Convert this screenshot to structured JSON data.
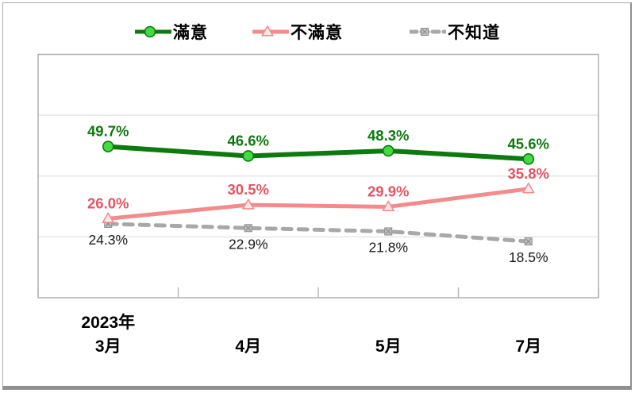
{
  "frame": {
    "background": "#ffffff",
    "border_color": "#ababab",
    "shadow_color": "#909090"
  },
  "chart_data": {
    "type": "line",
    "title": "",
    "categories": [
      "2023年3月",
      "2023年4月",
      "2023年5月",
      "2023年7月"
    ],
    "x_labels": [
      {
        "top": "2023年",
        "bottom": "3月"
      },
      {
        "top": "",
        "bottom": "4月"
      },
      {
        "top": "",
        "bottom": "5月"
      },
      {
        "top": "",
        "bottom": "7月"
      }
    ],
    "series": [
      {
        "name": "滿意",
        "values": [
          49.7,
          46.6,
          48.3,
          45.6
        ],
        "line_color": "#0c7a0e",
        "marker": "circle",
        "marker_fill": "#42db42",
        "label_color": "#0c7a0e",
        "label_bold": true,
        "dash": "solid",
        "line_width": 6,
        "label_position": "above"
      },
      {
        "name": "不滿意",
        "values": [
          26.0,
          30.5,
          29.9,
          35.8
        ],
        "line_color": "#f28c8c",
        "marker": "triangle",
        "marker_fill": "#fbe9ea",
        "label_color": "#e25563",
        "label_bold": true,
        "dash": "solid",
        "line_width": 5,
        "label_position": "above"
      },
      {
        "name": "不知道",
        "values": [
          24.3,
          22.9,
          21.8,
          18.5
        ],
        "line_color": "#a8a8a8",
        "marker": "square-x",
        "marker_fill": "#c4c4c4",
        "marker_stroke": "#8a8a8a",
        "label_color": "#1a1a1a",
        "label_bold": false,
        "dash": "dashed",
        "line_width": 5,
        "label_position": "below"
      }
    ],
    "ylim": [
      0,
      80
    ],
    "gridlines": [
      20,
      40,
      60
    ],
    "grid_on": true,
    "grid_color": "#e2e2e2",
    "axis_color": "#b0b0b0",
    "legend_position": "top",
    "value_suffix": "%",
    "xlabel": "",
    "ylabel": ""
  }
}
